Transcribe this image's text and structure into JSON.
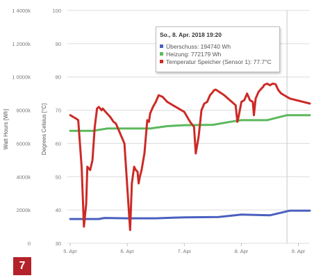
{
  "chart_data": {
    "type": "line",
    "y_left_outer": {
      "label": "Watt Hours [Wh]",
      "ticks": [
        "0",
        "2000k",
        "4000k",
        "6000k",
        "8000k",
        "1 0000k",
        "1 2000k",
        "1 4000k"
      ]
    },
    "y_left_inner": {
      "label": "Degrees Celsius [°C]",
      "ticks": [
        30,
        40,
        50,
        60,
        70,
        80,
        90,
        100
      ],
      "ylim": [
        30,
        100
      ]
    },
    "x_ticks": [
      {
        "label": "5. Apr",
        "value": 0
      },
      {
        "label": "6. Apr",
        "value": 1
      },
      {
        "label": "7. Apr",
        "value": 2
      },
      {
        "label": "8. Apr",
        "value": 3
      },
      {
        "label": "9. Apr",
        "value": 4
      }
    ],
    "xlim": [
      -0.05,
      4.2
    ],
    "crosshair_x": 3.8,
    "grid": true,
    "series": [
      {
        "name": "Überschuss",
        "color": "#4a5fbf",
        "x": [
          0,
          0.5,
          0.6,
          1.0,
          1.5,
          2.0,
          2.6,
          3.0,
          3.5,
          3.85,
          4.2
        ],
        "y": [
          37.3,
          37.3,
          37.6,
          37.5,
          37.5,
          37.8,
          37.9,
          38.6,
          38.4,
          39.8,
          39.8
        ]
      },
      {
        "name": "Heizung",
        "color": "#5cb85c",
        "x": [
          0,
          0.4,
          0.65,
          1.0,
          1.4,
          1.7,
          2.0,
          2.5,
          2.8,
          3.0,
          3.45,
          3.8,
          4.2
        ],
        "y": [
          63.8,
          63.8,
          64.5,
          64.5,
          64.5,
          65.2,
          65.5,
          65.6,
          66.5,
          67.0,
          67.0,
          68.5,
          68.5
        ]
      },
      {
        "name": "Temperatur Speicher (Sensor 1)",
        "color": "#cc2a26",
        "x": [
          0,
          0.1,
          0.14,
          0.2,
          0.24,
          0.28,
          0.3,
          0.35,
          0.39,
          0.43,
          0.47,
          0.5,
          0.55,
          0.57,
          0.62,
          0.7,
          0.76,
          0.8,
          0.95,
          1.05,
          1.08,
          1.12,
          1.15,
          1.18,
          1.2,
          1.22,
          1.25,
          1.3,
          1.35,
          1.38,
          1.4,
          1.45,
          1.5,
          1.55,
          1.62,
          1.7,
          1.75,
          1.8,
          2.0,
          2.1,
          2.17,
          2.2,
          2.25,
          2.3,
          2.35,
          2.4,
          2.45,
          2.5,
          2.52,
          2.55,
          2.7,
          2.8,
          2.9,
          2.93,
          2.95,
          3.0,
          3.05,
          3.1,
          3.15,
          3.2,
          3.22,
          3.25,
          3.3,
          3.35,
          3.38,
          3.4,
          3.45,
          3.5,
          3.55,
          3.6,
          3.65,
          3.7,
          3.75,
          3.8,
          3.85,
          4.2
        ],
        "y": [
          68.5,
          67.5,
          67.0,
          53.0,
          35.0,
          42.0,
          53.0,
          52.0,
          55.0,
          65.0,
          70.5,
          71.0,
          70.0,
          70.5,
          69.5,
          68.0,
          66.5,
          66.0,
          60.0,
          34.0,
          48.0,
          53.0,
          52.0,
          51.5,
          48.0,
          50.0,
          52.0,
          57.0,
          67.0,
          66.5,
          69.0,
          71.0,
          72.5,
          74.5,
          74.0,
          72.5,
          72.0,
          71.5,
          69.5,
          66.5,
          65.0,
          57.0,
          62.0,
          70.0,
          72.0,
          72.5,
          74.5,
          75.5,
          76.0,
          76.2,
          74.5,
          73.0,
          71.5,
          66.5,
          68.0,
          72.5,
          73.0,
          75.0,
          73.0,
          72.5,
          68.5,
          73.5,
          75.5,
          76.5,
          77.0,
          77.6,
          78.0,
          77.5,
          78.0,
          77.8,
          76.0,
          75.0,
          74.5,
          74.0,
          73.5,
          72.0
        ]
      }
    ],
    "tooltip": {
      "title": "So., 8. Apr. 2018 19:20",
      "rows": [
        {
          "text": "Überschuss: 194740 Wh",
          "color": "#4a5fbf"
        },
        {
          "text": "Heizung: 772179 Wh",
          "color": "#5cb85c"
        },
        {
          "text": "Temperatur Speicher (Sensor 1): 77.7°C",
          "color": "#cc2a26"
        }
      ]
    }
  },
  "badge": "7"
}
